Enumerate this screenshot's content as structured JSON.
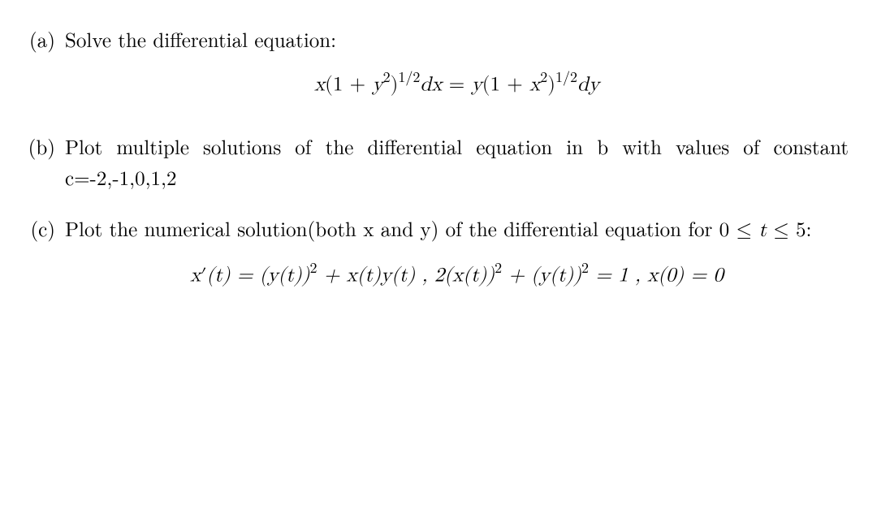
{
  "font": {
    "body_size_pt": 19,
    "equation_size_pt": 19,
    "family": "Latin Modern Roman / Computer Modern",
    "color": "#000000"
  },
  "background_color": "#ffffff",
  "items": [
    {
      "label": "(a)",
      "text_parts": {
        "prefix": "Solve the differential equation:"
      },
      "equation": {
        "raw": "x(1 + y²)^{1/2} dx = y(1 + x²)^{1/2} dy",
        "lhs_var1": "x",
        "lhs_open": "(1 + ",
        "lhs_var2": "y",
        "lhs_exp_inner": "2",
        "lhs_close": ")",
        "lhs_exp_outer": "1/2",
        "lhs_diff": "dx",
        "eq": " = ",
        "rhs_var1": "y",
        "rhs_open": "(1 + ",
        "rhs_var2": "x",
        "rhs_exp_inner": "2",
        "rhs_close": ")",
        "rhs_exp_outer": "1/2",
        "rhs_diff": "dy"
      }
    },
    {
      "label": "(b)",
      "text_parts": {
        "line": "Plot multiple solutions of the differential equation in b with values of constant c=-2,-1,0,1,2"
      }
    },
    {
      "label": "(c)",
      "text_parts": {
        "prefix": "Plot the numerical solution(both x and y) of the differential equation for ",
        "range_open": "0 ",
        "leq1": "≤",
        "range_var": " t ",
        "leq2": "≤",
        "range_end": " 5:",
        "range_raw": "0 ≤ t ≤ 5:"
      },
      "equation": {
        "raw": "x'(t) = (y(t))² + x(t)y(t) , 2(x(t))² + (y(t))² = 1 , x(0) = 0",
        "p1": "x",
        "prime": "′",
        "p2": "(t) = (y(t))",
        "sup1": "2",
        "p3": " + x(t)y(t) ,  2(x(t))",
        "sup2": "2",
        "p4": " + (y(t))",
        "sup3": "2",
        "p5": " = 1 ,  x(0) = 0"
      }
    }
  ]
}
